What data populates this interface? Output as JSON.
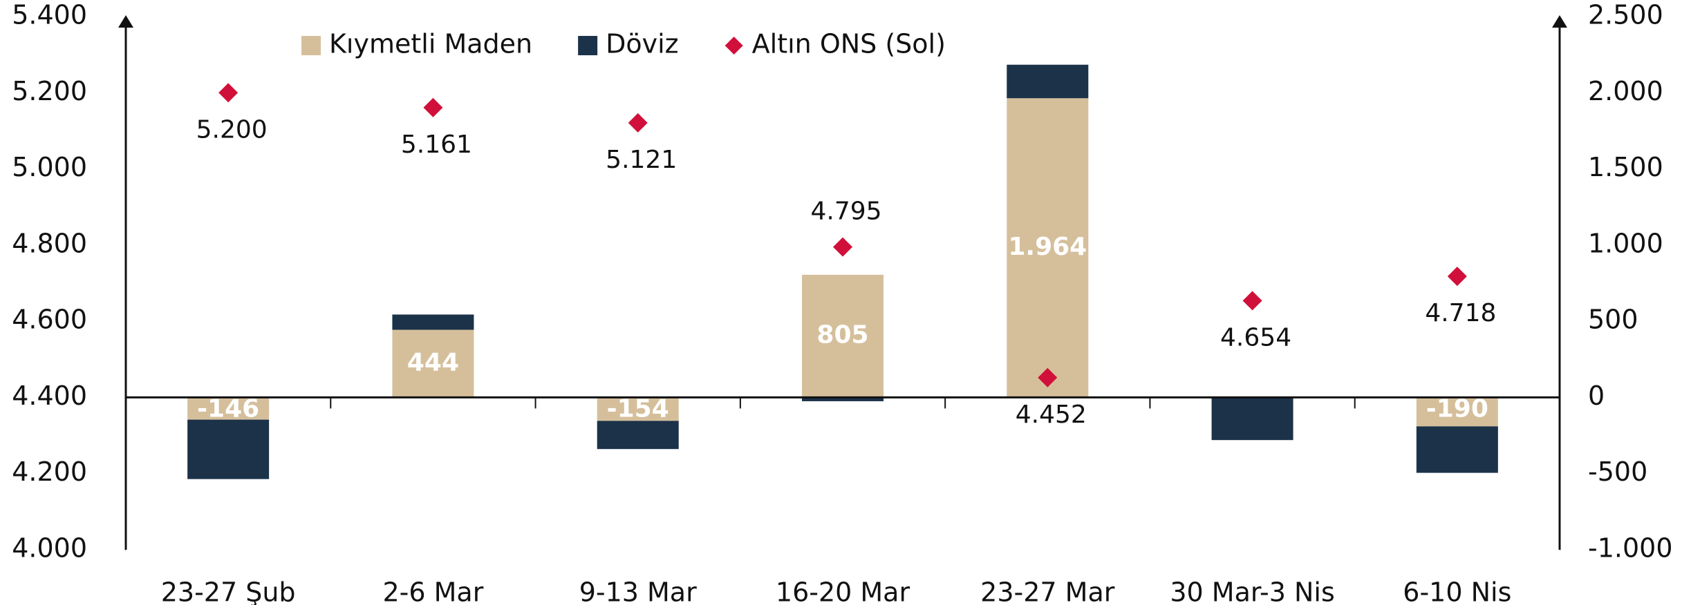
{
  "chart_data": {
    "type": "bar",
    "stacked": true,
    "categories": [
      "23-27 Şub",
      "2-6 Mar",
      "9-13 Mar",
      "16-20 Mar",
      "23-27 Mar",
      "30 Mar-3 Nis",
      "6-10 Nis"
    ],
    "series": [
      {
        "name": "Kıymetli Maden",
        "type": "bar",
        "axis": "y2",
        "color": "#d5bf9b",
        "values": [
          -146,
          444,
          -154,
          805,
          1964,
          0,
          -190
        ],
        "value_labels": [
          "-146",
          "444",
          "-154",
          "805",
          "1.964",
          null,
          "-190"
        ]
      },
      {
        "name": "Döviz",
        "type": "bar",
        "axis": "y2",
        "color": "#1b3249",
        "values": [
          -390,
          100,
          -185,
          -25,
          220,
          -280,
          -305
        ]
      },
      {
        "name": "Altın ONS (Sol)",
        "type": "scatter",
        "axis": "y",
        "color": "#d0103a",
        "values": [
          5200,
          5161,
          5121,
          4795,
          4452,
          4654,
          4718
        ],
        "value_labels": [
          "5.200",
          "5.161",
          "5.121",
          "4.795",
          "4.452",
          "4.654",
          "4.718"
        ]
      }
    ],
    "ylim": [
      4000,
      5400
    ],
    "yticks": [
      {
        "value": 4000,
        "label": "4.000"
      },
      {
        "value": 4200,
        "label": "4.200"
      },
      {
        "value": 4400,
        "label": "4.400"
      },
      {
        "value": 4600,
        "label": "4.600"
      },
      {
        "value": 4800,
        "label": "4.800"
      },
      {
        "value": 5000,
        "label": "5.000"
      },
      {
        "value": 5200,
        "label": "5.200"
      },
      {
        "value": 5400,
        "label": "5.400"
      }
    ],
    "y2lim": [
      -1000,
      2500
    ],
    "y2ticks": [
      {
        "value": -1000,
        "label": "-1.000"
      },
      -500,
      0,
      500,
      {
        "value": 1000,
        "label": "1.000"
      },
      {
        "value": 1500,
        "label": "1.500"
      },
      {
        "value": 2000,
        "label": "2.000"
      },
      {
        "value": 2500,
        "label": "2.500"
      }
    ],
    "legend": "top",
    "grid": false
  }
}
